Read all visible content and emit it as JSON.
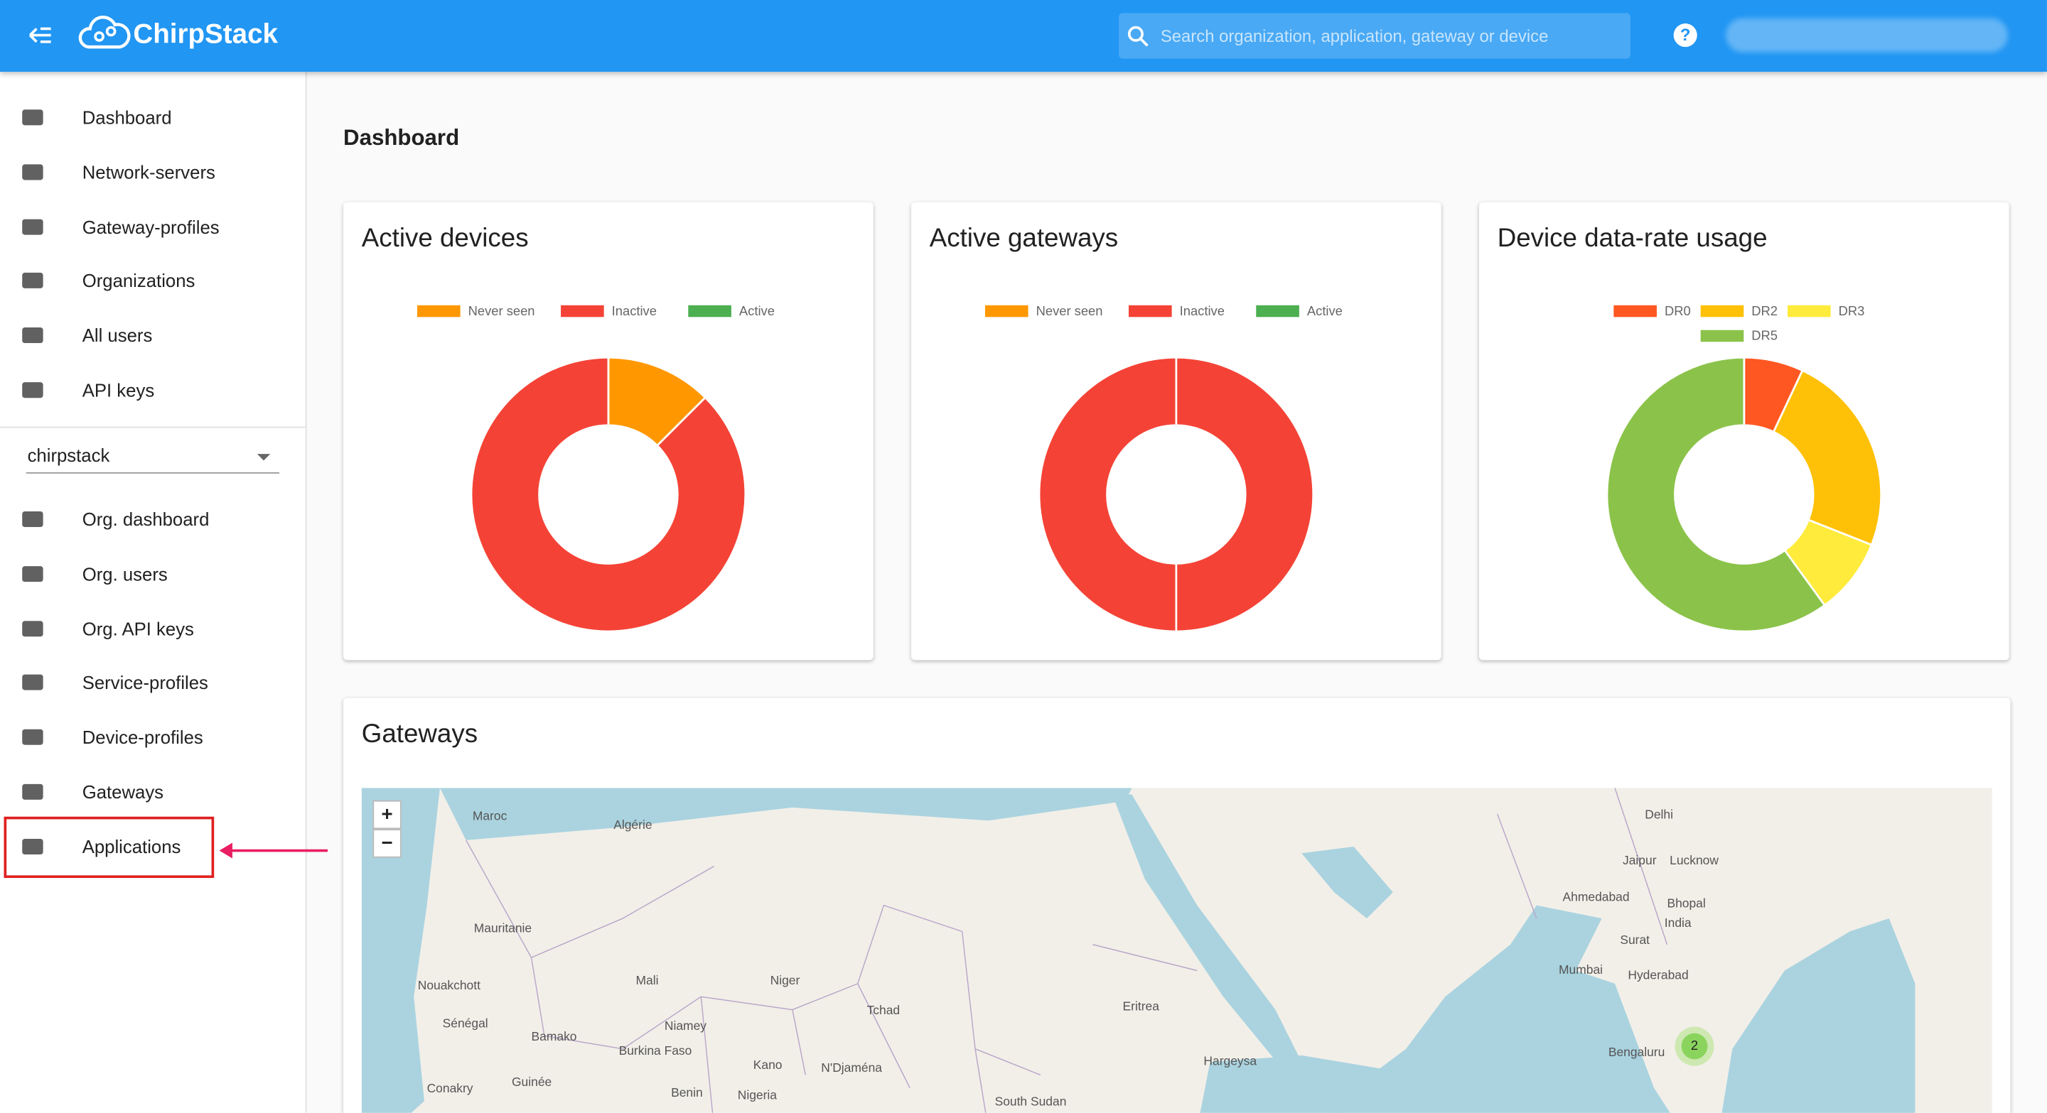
{
  "header": {
    "brand": "ChirpStack",
    "search_placeholder": "Search organization, application, gateway or device",
    "help_icon": "?"
  },
  "sidebar": {
    "global_items": [
      "Dashboard",
      "Network-servers",
      "Gateway-profiles",
      "Organizations",
      "All users",
      "API keys"
    ],
    "organization": "chirpstack",
    "org_items": [
      "Org. dashboard",
      "Org. users",
      "Org. API keys",
      "Service-profiles",
      "Device-profiles",
      "Gateways",
      "Applications"
    ]
  },
  "page_title": "Dashboard",
  "cards": [
    {
      "title": "Active devices",
      "segments": [
        {
          "name": "Never seen",
          "color": "#ff9800",
          "value": 12.5
        },
        {
          "name": "Inactive",
          "color": "#f44336",
          "value": 87.5
        },
        {
          "name": "Active",
          "color": "#4caf50",
          "value": 0
        }
      ]
    },
    {
      "title": "Active gateways",
      "segments": [
        {
          "name": "Never seen",
          "color": "#ff9800",
          "value": 0
        },
        {
          "name": "Inactive",
          "color": "#f44336",
          "value": 100
        },
        {
          "name": "Active",
          "color": "#4caf50",
          "value": 0
        }
      ]
    },
    {
      "title": "Device data-rate usage",
      "segments": [
        {
          "name": "DR0",
          "color": "#ff5722",
          "value": 7
        },
        {
          "name": "DR2",
          "color": "#ffc107",
          "value": 24
        },
        {
          "name": "DR3",
          "color": "#ffeb3b",
          "value": 9
        },
        {
          "name": "DR5",
          "color": "#8bc34a",
          "value": 60
        }
      ]
    }
  ],
  "gateways": {
    "title": "Gateways",
    "zoom_in": "+",
    "zoom_out": "−",
    "cluster": 2,
    "map_labels": [
      "Maroc",
      "Algérie",
      "Mauritanie",
      "Mali",
      "Niger",
      "Tchad",
      "Nouakchott",
      "Sénégal",
      "Bamako",
      "Burkina Faso",
      "Niamey",
      "Kano",
      "Nigeria",
      "Benin",
      "Conakry",
      "Guinée",
      "N'Djaména",
      "Eritrea",
      "Hargeysa",
      "South Sudan",
      "Delhi",
      "Jaipur",
      "Lucknow",
      "Ahmedabad",
      "Bhopal",
      "India",
      "Surat",
      "Mumbai",
      "Hyderabad",
      "Bengaluru"
    ]
  }
}
